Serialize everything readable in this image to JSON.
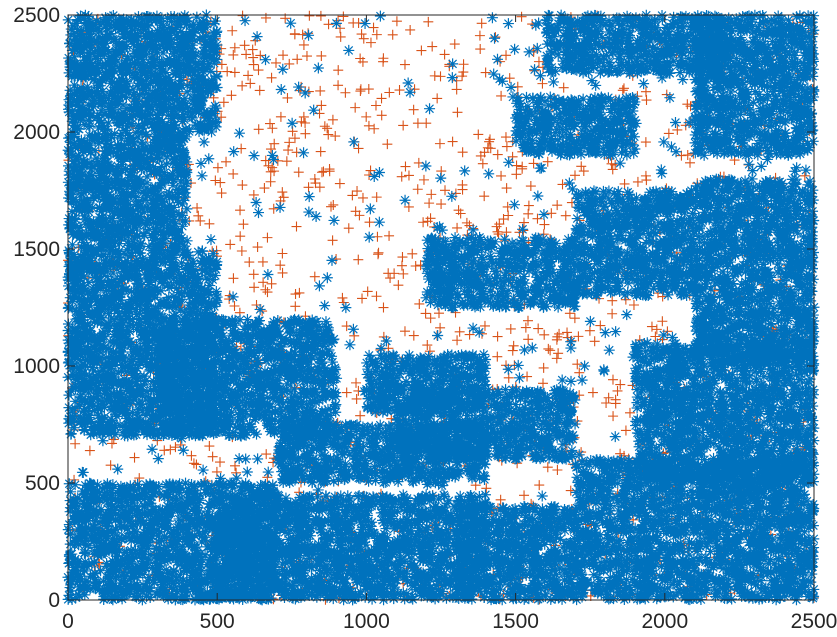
{
  "chart_data": {
    "type": "scatter",
    "title": "",
    "xlabel": "",
    "ylabel": "",
    "xlim": [
      0,
      2500
    ],
    "ylim": [
      0,
      2500
    ],
    "xticks": [
      "0",
      "500",
      "1000",
      "1500",
      "2000",
      "2500"
    ],
    "yticks": [
      "0",
      "500",
      "1000",
      "1500",
      "2000",
      "2500"
    ],
    "xtick_values": [
      0,
      500,
      1000,
      1500,
      2000,
      2500
    ],
    "ytick_values": [
      0,
      500,
      1000,
      1500,
      2000,
      2500
    ],
    "grid": false,
    "legend": "none",
    "series": [
      {
        "marker": "asterisk",
        "color": "#0072BD",
        "description_dense_clusters": [
          {
            "x": [
              0,
              500
            ],
            "y": [
              2000,
              2500
            ]
          },
          {
            "x": [
              2100,
              2500
            ],
            "y": [
              1900,
              2500
            ]
          },
          {
            "x": [
              1600,
              2200
            ],
            "y": [
              2250,
              2500
            ]
          },
          {
            "x": [
              1500,
              1900
            ],
            "y": [
              1900,
              2150
            ]
          },
          {
            "x": [
              1700,
              2100
            ],
            "y": [
              1300,
              1750
            ]
          },
          {
            "x": [
              2100,
              2500
            ],
            "y": [
              1000,
              1800
            ]
          },
          {
            "x": [
              0,
              500
            ],
            "y": [
              700,
              1500
            ]
          },
          {
            "x": [
              0,
              400
            ],
            "y": [
              1500,
              2000
            ]
          },
          {
            "x": [
              300,
              900
            ],
            "y": [
              700,
              1200
            ]
          },
          {
            "x": [
              1000,
              1400
            ],
            "y": [
              800,
              1050
            ]
          },
          {
            "x": [
              1100,
              1700
            ],
            "y": [
              600,
              900
            ]
          },
          {
            "x": [
              0,
              700
            ],
            "y": [
              0,
              500
            ]
          },
          {
            "x": [
              500,
              1400
            ],
            "y": [
              0,
              450
            ]
          },
          {
            "x": [
              1300,
              1700
            ],
            "y": [
              0,
              400
            ]
          },
          {
            "x": [
              1700,
              2500
            ],
            "y": [
              0,
              600
            ]
          },
          {
            "x": [
              1900,
              2500
            ],
            "y": [
              500,
              1100
            ]
          },
          {
            "x": [
              700,
              1400
            ],
            "y": [
              500,
              750
            ]
          },
          {
            "x": [
              1200,
              1700
            ],
            "y": [
              1250,
              1550
            ]
          }
        ]
      },
      {
        "marker": "plus",
        "color": "#D95319",
        "description_uniform": {
          "x": [
            0,
            2500
          ],
          "y": [
            0,
            2500
          ]
        }
      }
    ]
  }
}
